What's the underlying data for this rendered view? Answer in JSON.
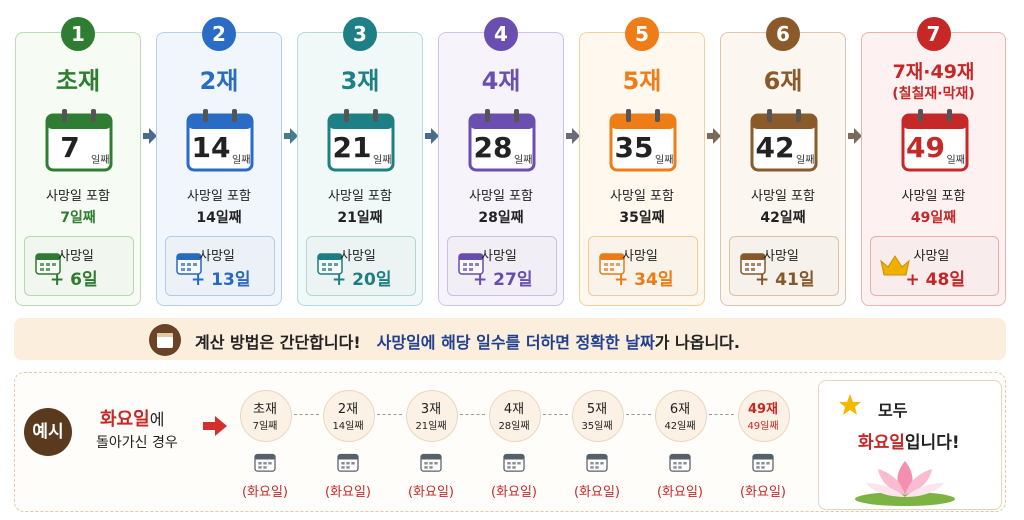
{
  "steps": [
    {
      "number": "1",
      "title": "초재",
      "day": "7",
      "day_suffix": "일째",
      "included_label": "사망일 포함",
      "included_day": "7일째",
      "offset_label": "사망일",
      "offset": "+ 6일"
    },
    {
      "number": "2",
      "title": "2재",
      "day": "14",
      "day_suffix": "일째",
      "included_label": "사망일 포함",
      "included_day": "14일째",
      "offset_label": "사망일",
      "offset": "+ 13일"
    },
    {
      "number": "3",
      "title": "3재",
      "day": "21",
      "day_suffix": "일째",
      "included_label": "사망일 포함",
      "included_day": "21일째",
      "offset_label": "사망일",
      "offset": "+ 20일"
    },
    {
      "number": "4",
      "title": "4재",
      "day": "28",
      "day_suffix": "일째",
      "included_label": "사망일 포함",
      "included_day": "28일째",
      "offset_label": "사망일",
      "offset": "+ 27일"
    },
    {
      "number": "5",
      "title": "5재",
      "day": "35",
      "day_suffix": "일째",
      "included_label": "사망일 포함",
      "included_day": "35일째",
      "offset_label": "사망일",
      "offset": "+ 34일"
    },
    {
      "number": "6",
      "title": "6재",
      "day": "42",
      "day_suffix": "일째",
      "included_label": "사망일 포함",
      "included_day": "42일째",
      "offset_label": "사망일",
      "offset": "+ 41일"
    },
    {
      "number": "7",
      "title": "7재·49재",
      "subtitle": "(칠칠재·막재)",
      "day": "49",
      "day_suffix": "일째",
      "included_label": "사망일 포함",
      "included_day": "49일째",
      "offset_label": "사망일",
      "offset": "+ 48일"
    }
  ],
  "method": {
    "lead": "계산 방법은 간단합니다!",
    "highlight": "사망일에 해당 일수를 더하면 정확한 날짜",
    "tail": "가 나옵니다."
  },
  "example": {
    "badge": "예시",
    "day_name": "화요일",
    "day_particle": "에",
    "condition": "돌아가신 경우",
    "items": [
      {
        "name": "초재",
        "day": "7일째",
        "weekday": "(화요일)"
      },
      {
        "name": "2재",
        "day": "14일째",
        "weekday": "(화요일)"
      },
      {
        "name": "3재",
        "day": "21일째",
        "weekday": "(화요일)"
      },
      {
        "name": "4재",
        "day": "28일째",
        "weekday": "(화요일)"
      },
      {
        "name": "5재",
        "day": "35일째",
        "weekday": "(화요일)"
      },
      {
        "name": "6재",
        "day": "42일째",
        "weekday": "(화요일)"
      },
      {
        "name": "49재",
        "day": "49일째",
        "weekday": "(화요일)"
      }
    ],
    "conclusion_lead": "모두",
    "conclusion_day": "화요일",
    "conclusion_tail": "입니다!"
  }
}
